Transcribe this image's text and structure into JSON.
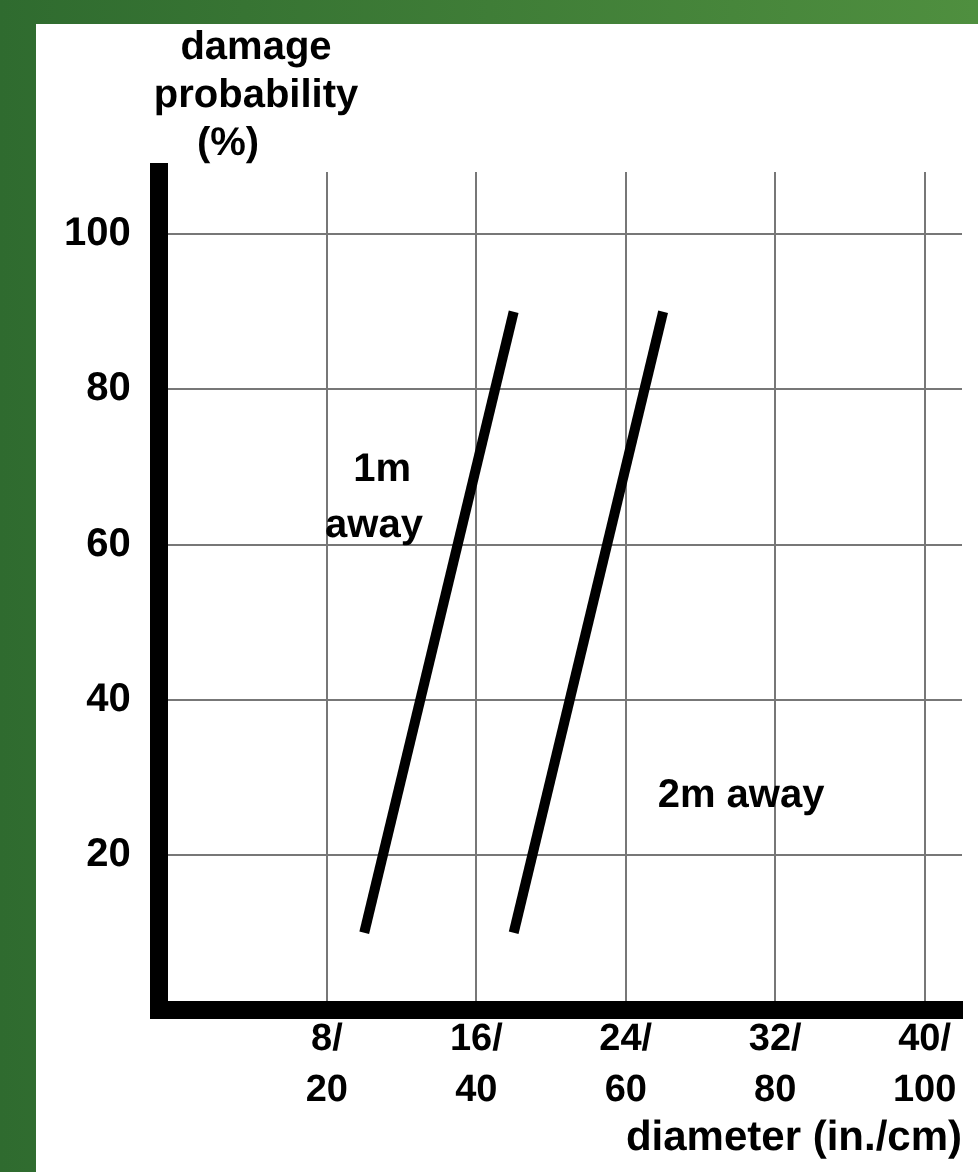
{
  "chart_data": {
    "type": "line",
    "ylabel": "damage probability (%)",
    "xlabel": "diameter (in./cm)",
    "xlim": [
      -1,
      42
    ],
    "ylim": [
      0,
      108
    ],
    "xticks": [
      {
        "value": 8,
        "label": "8/"
      },
      {
        "value": 16,
        "label": "16/"
      },
      {
        "value": 24,
        "label": "24/"
      },
      {
        "value": 32,
        "label": "32/"
      },
      {
        "value": 40,
        "label": "40/"
      }
    ],
    "x2lim": [
      -2.5,
      105
    ],
    "x2ticks": [
      20,
      40,
      60,
      80,
      100
    ],
    "yticks": [
      20,
      40,
      60,
      80,
      100
    ],
    "series": [
      {
        "name": "1m away",
        "color": "#000000",
        "x": [
          10,
          18
        ],
        "values": [
          10,
          90
        ]
      },
      {
        "name": "2m away",
        "color": "#000000",
        "x": [
          18,
          26
        ],
        "values": [
          10,
          90
        ]
      }
    ],
    "grid": true,
    "legend": false,
    "marker": "none",
    "line_style": "solid"
  }
}
